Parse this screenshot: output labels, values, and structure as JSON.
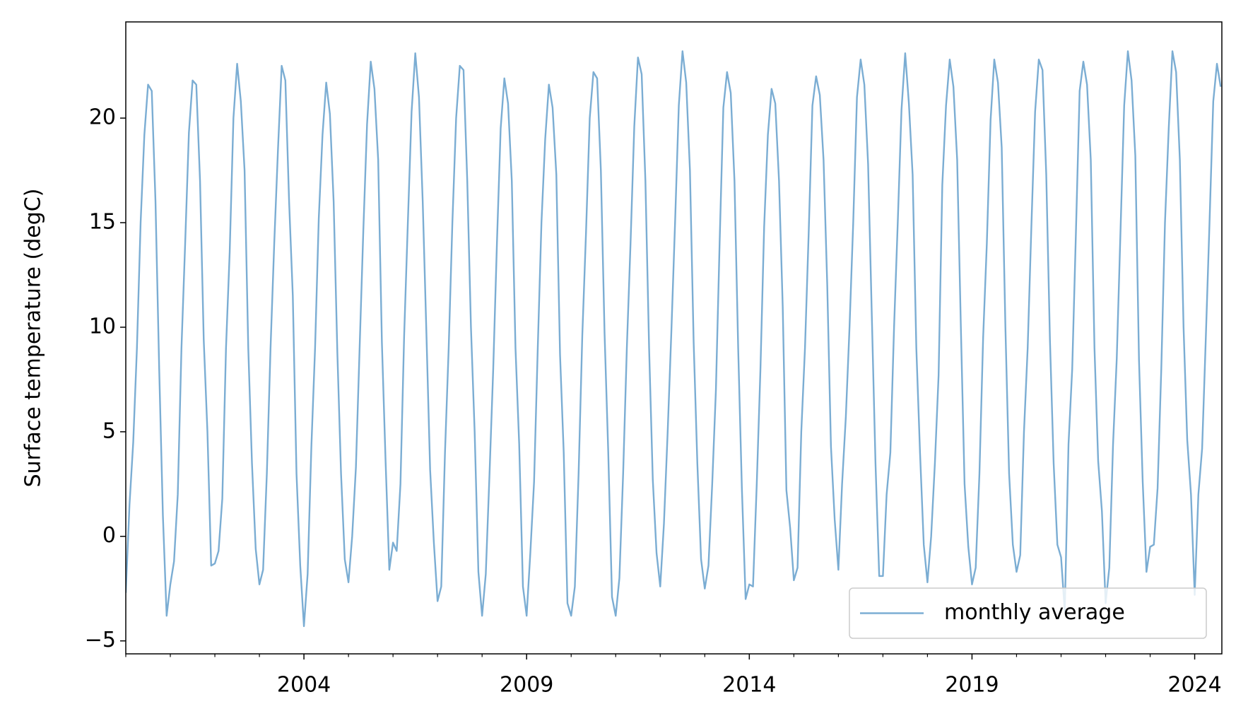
{
  "chart_data": {
    "type": "line",
    "ylabel": "Surface temperature (degC)",
    "xlim": [
      2000,
      2024.61
    ],
    "ylim": [
      -5.62,
      24.6
    ],
    "xticks": [
      2004,
      2009,
      2014,
      2019,
      2024
    ],
    "xminorticks": [
      2000,
      2001,
      2002,
      2003,
      2005,
      2006,
      2007,
      2008,
      2010,
      2011,
      2012,
      2013,
      2015,
      2016,
      2017,
      2018,
      2020,
      2021,
      2022,
      2023
    ],
    "yticks": [
      {
        "value": -5,
        "label": "−5"
      },
      0,
      5,
      10,
      15,
      20
    ],
    "legend": "lower right",
    "x": [
      2000,
      2000.083,
      2000.167,
      2000.25,
      2000.333,
      2000.417,
      2000.5,
      2000.583,
      2000.667,
      2000.75,
      2000.833,
      2000.917,
      2001,
      2001.083,
      2001.167,
      2001.25,
      2001.333,
      2001.417,
      2001.5,
      2001.583,
      2001.667,
      2001.75,
      2001.833,
      2001.917,
      2002,
      2002.083,
      2002.167,
      2002.25,
      2002.333,
      2002.417,
      2002.5,
      2002.583,
      2002.667,
      2002.75,
      2002.833,
      2002.917,
      2003,
      2003.083,
      2003.167,
      2003.25,
      2003.333,
      2003.417,
      2003.5,
      2003.583,
      2003.667,
      2003.75,
      2003.833,
      2003.917,
      2004,
      2004.083,
      2004.167,
      2004.25,
      2004.333,
      2004.417,
      2004.5,
      2004.583,
      2004.667,
      2004.75,
      2004.833,
      2004.917,
      2005,
      2005.083,
      2005.167,
      2005.25,
      2005.333,
      2005.417,
      2005.5,
      2005.583,
      2005.667,
      2005.75,
      2005.833,
      2005.917,
      2006,
      2006.083,
      2006.167,
      2006.25,
      2006.333,
      2006.417,
      2006.5,
      2006.583,
      2006.667,
      2006.75,
      2006.833,
      2006.917,
      2007,
      2007.083,
      2007.167,
      2007.25,
      2007.333,
      2007.417,
      2007.5,
      2007.583,
      2007.667,
      2007.75,
      2007.833,
      2007.917,
      2008,
      2008.083,
      2008.167,
      2008.25,
      2008.333,
      2008.417,
      2008.5,
      2008.583,
      2008.667,
      2008.75,
      2008.833,
      2008.917,
      2009,
      2009.083,
      2009.167,
      2009.25,
      2009.333,
      2009.417,
      2009.5,
      2009.583,
      2009.667,
      2009.75,
      2009.833,
      2009.917,
      2010,
      2010.083,
      2010.167,
      2010.25,
      2010.333,
      2010.417,
      2010.5,
      2010.583,
      2010.667,
      2010.75,
      2010.833,
      2010.917,
      2011,
      2011.083,
      2011.167,
      2011.25,
      2011.333,
      2011.417,
      2011.5,
      2011.583,
      2011.667,
      2011.75,
      2011.833,
      2011.917,
      2012,
      2012.083,
      2012.167,
      2012.25,
      2012.333,
      2012.417,
      2012.5,
      2012.583,
      2012.667,
      2012.75,
      2012.833,
      2012.917,
      2013,
      2013.083,
      2013.167,
      2013.25,
      2013.333,
      2013.417,
      2013.5,
      2013.583,
      2013.667,
      2013.75,
      2013.833,
      2013.917,
      2014,
      2014.083,
      2014.167,
      2014.25,
      2014.333,
      2014.417,
      2014.5,
      2014.583,
      2014.667,
      2014.75,
      2014.833,
      2014.917,
      2015,
      2015.083,
      2015.167,
      2015.25,
      2015.333,
      2015.417,
      2015.5,
      2015.583,
      2015.667,
      2015.75,
      2015.833,
      2015.917,
      2016,
      2016.083,
      2016.167,
      2016.25,
      2016.333,
      2016.417,
      2016.5,
      2016.583,
      2016.667,
      2016.75,
      2016.833,
      2016.917,
      2017,
      2017.083,
      2017.167,
      2017.25,
      2017.333,
      2017.417,
      2017.5,
      2017.583,
      2017.667,
      2017.75,
      2017.833,
      2017.917,
      2018,
      2018.083,
      2018.167,
      2018.25,
      2018.333,
      2018.417,
      2018.5,
      2018.583,
      2018.667,
      2018.75,
      2018.833,
      2018.917,
      2019,
      2019.083,
      2019.167,
      2019.25,
      2019.333,
      2019.417,
      2019.5,
      2019.583,
      2019.667,
      2019.75,
      2019.833,
      2019.917,
      2020,
      2020.083,
      2020.167,
      2020.25,
      2020.333,
      2020.417,
      2020.5,
      2020.583,
      2020.667,
      2020.75,
      2020.833,
      2020.917,
      2021,
      2021.083,
      2021.167,
      2021.25,
      2021.333,
      2021.417,
      2021.5,
      2021.583,
      2021.667,
      2021.75,
      2021.833,
      2021.917,
      2022,
      2022.083,
      2022.167,
      2022.25,
      2022.333,
      2022.417,
      2022.5,
      2022.583,
      2022.667,
      2022.75,
      2022.833,
      2022.917,
      2023,
      2023.083,
      2023.167,
      2023.25,
      2023.333,
      2023.417,
      2023.5,
      2023.583,
      2023.667,
      2023.75,
      2023.833,
      2023.917,
      2024,
      2024.083,
      2024.167,
      2024.25,
      2024.333,
      2024.417,
      2024.5,
      2024.583
    ],
    "series": [
      {
        "name": "monthly average",
        "color": "#7badd3",
        "values": [
          -2.7,
          1.5,
          4.5,
          9,
          15,
          19.2,
          21.6,
          21.3,
          16,
          8,
          1,
          -3.8,
          -2.3,
          -1.2,
          2,
          9,
          14,
          19.3,
          21.8,
          21.6,
          17,
          9.4,
          5,
          -1.4,
          -1.3,
          -0.7,
          1.8,
          9,
          13.6,
          20,
          22.6,
          20.8,
          17.5,
          9,
          3.5,
          -0.6,
          -2.3,
          -1.6,
          3,
          9,
          14,
          18.5,
          22.5,
          21.8,
          16,
          11.5,
          3,
          -1.4,
          -4.3,
          -1.8,
          4.3,
          9,
          15.2,
          19.2,
          21.7,
          20.2,
          16,
          8.8,
          3,
          -1.1,
          -2.2,
          0,
          3.3,
          9,
          14.6,
          19.7,
          22.7,
          21.4,
          18,
          9.3,
          3.6,
          -1.6,
          -0.3,
          -0.7,
          2.5,
          9.6,
          15,
          20.3,
          23.1,
          21,
          16,
          9.7,
          3.2,
          -0.3,
          -3.1,
          -2.4,
          4,
          9,
          15,
          20,
          22.5,
          22.3,
          17,
          10,
          5,
          -1.7,
          -3.8,
          -1.8,
          3,
          8,
          14,
          19.5,
          21.9,
          20.7,
          17,
          9,
          4.4,
          -2.4,
          -3.8,
          -0.8,
          2.6,
          9,
          15,
          19,
          21.6,
          20.5,
          17.3,
          8.7,
          4,
          -3.2,
          -3.8,
          -2.4,
          3,
          9.6,
          14.5,
          20,
          22.2,
          21.9,
          17.5,
          9.7,
          4,
          -2.9,
          -3.8,
          -2,
          3,
          9,
          14,
          19.6,
          22.9,
          22.1,
          17,
          9,
          2.7,
          -0.8,
          -2.4,
          0.6,
          5,
          9.8,
          15,
          20.6,
          23.2,
          21.7,
          17.5,
          9.3,
          3.5,
          -1.1,
          -2.5,
          -1.4,
          2.5,
          7,
          14,
          20.5,
          22.2,
          21.2,
          17,
          9,
          2.3,
          -3,
          -2.3,
          -2.4,
          2.5,
          8,
          14.8,
          19.2,
          21.4,
          20.7,
          17,
          11,
          2.2,
          0.4,
          -2.1,
          -1.5,
          5,
          9,
          14.5,
          20.6,
          22,
          21.1,
          18,
          12,
          4.3,
          0.8,
          -1.6,
          2.5,
          5.7,
          10,
          15,
          21,
          22.8,
          21.6,
          17.8,
          10.6,
          3.5,
          -1.9,
          -1.9,
          2,
          4,
          10,
          15,
          20.4,
          23.1,
          20.7,
          17.3,
          9,
          4,
          -0.4,
          -2.2,
          0,
          3.5,
          7.7,
          16.8,
          20.6,
          22.8,
          21.5,
          18,
          10,
          2.5,
          -0.5,
          -2.3,
          -1.5,
          3,
          9.5,
          14,
          19.9,
          22.8,
          21.7,
          18.6,
          10,
          3,
          -0.4,
          -1.7,
          -0.9,
          5,
          9,
          14.8,
          20.3,
          22.8,
          22.3,
          17.3,
          9.4,
          3.5,
          -0.4,
          -1,
          -3.6,
          4.4,
          8,
          14.5,
          21.3,
          22.7,
          21.6,
          18,
          9,
          3.6,
          1.2,
          -3.2,
          -1.5,
          4.4,
          8.5,
          14.5,
          20.6,
          23.2,
          21.8,
          18.2,
          8.4,
          2.6,
          -1.7,
          -0.5,
          -0.4,
          2.3,
          8,
          15,
          19.5,
          23.2,
          22.2,
          18,
          10,
          4.6,
          2,
          -2.8,
          2,
          4.2,
          9.5,
          15,
          20.8,
          22.6,
          21.5
        ]
      }
    ]
  }
}
